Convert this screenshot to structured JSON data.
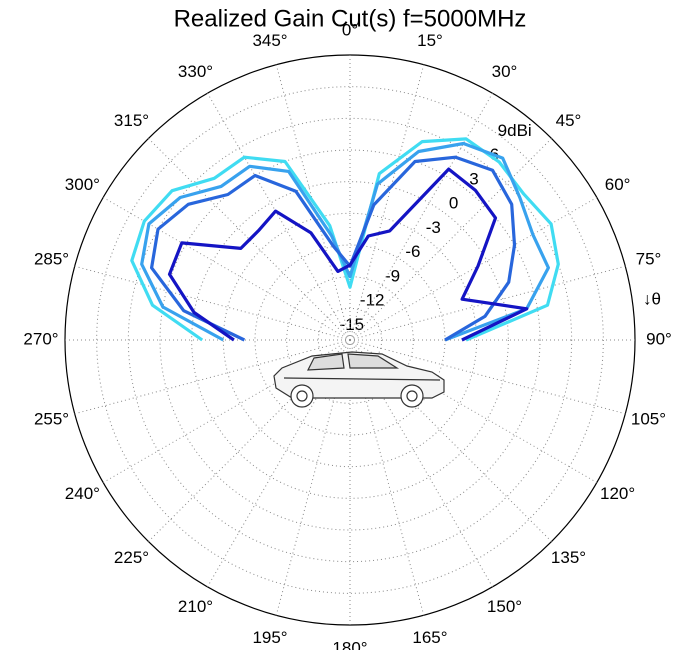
{
  "chart_data": {
    "type": "polar",
    "title": "Realized Gain Cut(s) f=5000MHz",
    "annotation": "↓θ",
    "direction": "clockwise",
    "zero": "top",
    "rlim": [
      -15,
      12
    ],
    "rticks": [
      -15,
      -12,
      -9,
      -6,
      -3,
      0,
      3,
      6,
      {
        "value": 9,
        "label": "9dBi"
      }
    ],
    "thetaticks": [
      {
        "value": 0,
        "label": "0°"
      },
      {
        "value": 15,
        "label": "15°"
      },
      {
        "value": 30,
        "label": "30°"
      },
      {
        "value": 45,
        "label": "45°"
      },
      {
        "value": 60,
        "label": "60°"
      },
      {
        "value": 75,
        "label": "75°"
      },
      {
        "value": 90,
        "label": "90°"
      },
      {
        "value": 105,
        "label": "105°"
      },
      {
        "value": 120,
        "label": "120°"
      },
      {
        "value": 135,
        "label": "135°"
      },
      {
        "value": 150,
        "label": "150°"
      },
      {
        "value": 165,
        "label": "165°"
      },
      {
        "value": 180,
        "label": "180°"
      },
      {
        "value": 195,
        "label": "195°"
      },
      {
        "value": 210,
        "label": "210°"
      },
      {
        "value": 225,
        "label": "225°"
      },
      {
        "value": 240,
        "label": "240°"
      },
      {
        "value": 255,
        "label": "255°"
      },
      {
        "value": 270,
        "label": "270°"
      },
      {
        "value": 285,
        "label": "285°"
      },
      {
        "value": 300,
        "label": "300°"
      },
      {
        "value": 315,
        "label": "315°"
      },
      {
        "value": 330,
        "label": "330°"
      },
      {
        "value": 345,
        "label": "345°"
      }
    ],
    "grid": true,
    "x": [
      270,
      280,
      290,
      300,
      310,
      320,
      330,
      340,
      350,
      0,
      10,
      20,
      30,
      40,
      50,
      60,
      70,
      80,
      90
    ],
    "series": [
      {
        "color": "#40dcf2",
        "values": [
          -1,
          4,
          7,
          7.5,
          7,
          5,
          5,
          3,
          -4,
          -10,
          1,
          5,
          7,
          7,
          6.5,
          7,
          6,
          4,
          -4
        ]
      },
      {
        "color": "#38a2ee",
        "values": [
          -3,
          3,
          6,
          7,
          6,
          4,
          4,
          2,
          -5,
          -9,
          0,
          4,
          6.5,
          7.5,
          6,
          5,
          5,
          2,
          -6
        ]
      },
      {
        "color": "#2866dc",
        "values": [
          -5,
          1,
          5,
          6,
          5,
          3,
          3,
          0,
          -6,
          -8,
          -2,
          3,
          5,
          6,
          5,
          3,
          1,
          -2,
          -6
        ]
      },
      {
        "color": "#1414c4",
        "values": [
          -4,
          0,
          3.2,
          3.4,
          -1.5,
          -1.5,
          -0.9,
          -4.2,
          -8.4,
          -7.9,
          -5,
          -4,
          3.7,
          3.5,
          3,
          -1,
          -3.7,
          2,
          -4.4
        ]
      }
    ]
  }
}
